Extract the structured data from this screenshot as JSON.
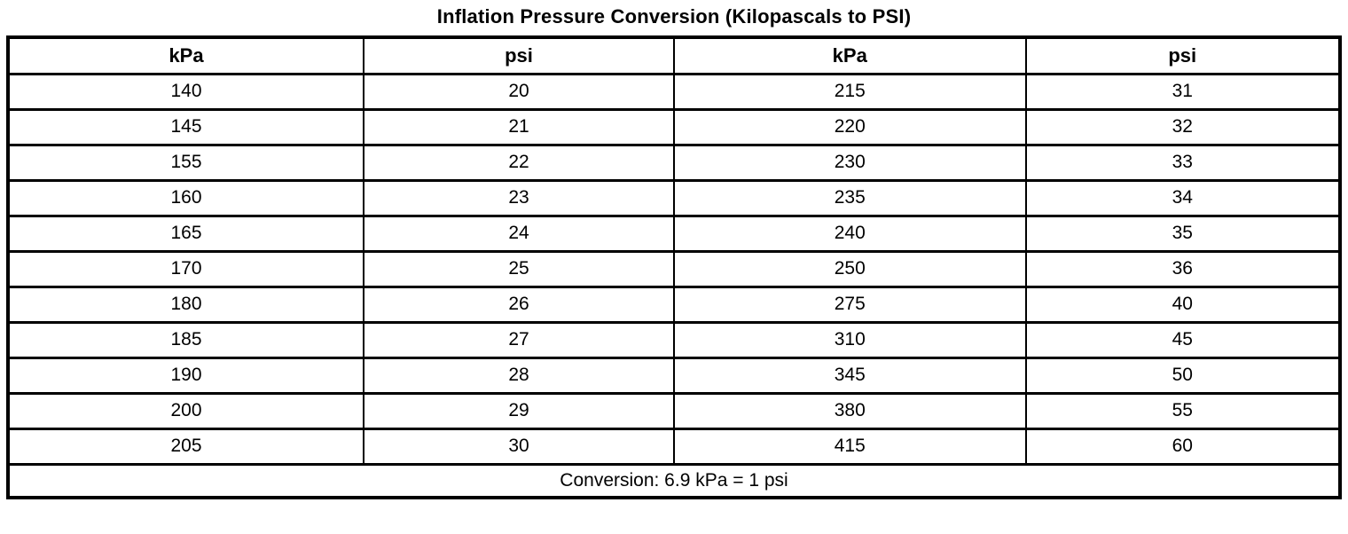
{
  "title": "Inflation Pressure Conversion (Kilopascals to PSI)",
  "table": {
    "headers": [
      "kPa",
      "psi",
      "kPa",
      "psi"
    ],
    "rows": [
      [
        "140",
        "20",
        "215",
        "31"
      ],
      [
        "145",
        "21",
        "220",
        "32"
      ],
      [
        "155",
        "22",
        "230",
        "33"
      ],
      [
        "160",
        "23",
        "235",
        "34"
      ],
      [
        "165",
        "24",
        "240",
        "35"
      ],
      [
        "170",
        "25",
        "250",
        "36"
      ],
      [
        "180",
        "26",
        "275",
        "40"
      ],
      [
        "185",
        "27",
        "310",
        "45"
      ],
      [
        "190",
        "28",
        "345",
        "50"
      ],
      [
        "200",
        "29",
        "380",
        "55"
      ],
      [
        "205",
        "30",
        "415",
        "60"
      ]
    ],
    "footer": "Conversion: 6.9 kPa = 1 psi"
  },
  "colors": {
    "text": "#000000",
    "border": "#000000",
    "background": "#ffffff"
  }
}
